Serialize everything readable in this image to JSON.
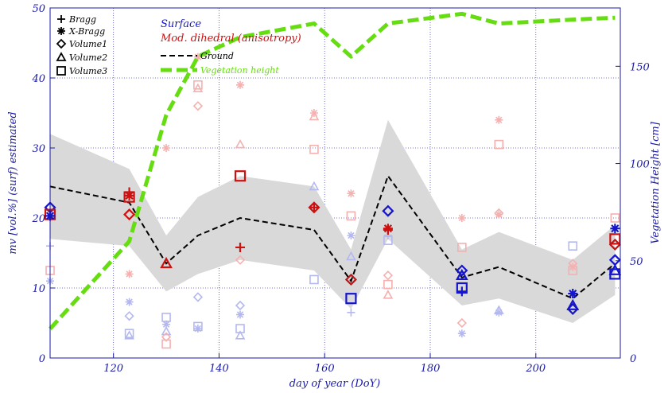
{
  "chart_data": {
    "type": "scatter",
    "xlabel": "day of year (DoY)",
    "ylabel_left": "mv [vol.%] (surf) estimated",
    "ylabel_right": "Vegetation Height [cm]",
    "xlim": [
      108,
      216
    ],
    "ylim_left": [
      0,
      50
    ],
    "ylim_right": [
      0,
      180
    ],
    "xticks": [
      120,
      140,
      160,
      180,
      200
    ],
    "yticks_left": [
      0,
      10,
      20,
      30,
      40,
      50
    ],
    "yticks_right": [
      0,
      50,
      100,
      150
    ],
    "grid": true,
    "colors": {
      "surface": "#1515cc",
      "dihedral": "#cc1111",
      "pale_surface": "#b4b8f0",
      "pale_dihedral": "#f5b0b0",
      "envelope": "#d9d9d9",
      "ground": "#000000",
      "vegetation": "#66dd11",
      "axis": "#1a1aa8"
    },
    "legend": {
      "symbols": [
        {
          "marker": "plus",
          "label": "Bragg"
        },
        {
          "marker": "star",
          "label": "X-Bragg"
        },
        {
          "marker": "diamond",
          "label": "Volume1"
        },
        {
          "marker": "triangle",
          "label": "Volume2"
        },
        {
          "marker": "square",
          "label": "Volume3"
        }
      ],
      "surface_label": "Surface",
      "dihedral_label": "Mod. dihedral (anisotropy)",
      "ground_label": "Ground",
      "vegetation_label": "Vegetation height"
    },
    "ground_series": {
      "x": [
        108,
        123,
        130,
        136,
        144,
        158,
        165,
        172,
        186,
        193,
        207,
        215
      ],
      "y": [
        24.5,
        22.2,
        13.5,
        17.5,
        20,
        18.3,
        11,
        26,
        11.5,
        13,
        8.5,
        13.5
      ]
    },
    "envelope": {
      "x": [
        108,
        123,
        130,
        136,
        144,
        158,
        165,
        172,
        186,
        193,
        207,
        215
      ],
      "upper": [
        32,
        27,
        17.5,
        23,
        26,
        24.5,
        15.5,
        34,
        15.5,
        18,
        14,
        19
      ],
      "lower": [
        17,
        16,
        9.5,
        12,
        14,
        12.5,
        7,
        17,
        7.5,
        8.5,
        5,
        9
      ]
    },
    "vegetation_series": {
      "x": [
        108,
        123,
        130,
        136,
        144,
        158,
        165,
        172,
        186,
        193,
        207,
        215
      ],
      "y": [
        15,
        60,
        125,
        155,
        165,
        172,
        155,
        172,
        177,
        172,
        174,
        175
      ]
    },
    "points": [
      {
        "x": 108,
        "y": 21.5,
        "marker": "diamond",
        "color": "surface",
        "size": "large"
      },
      {
        "x": 108,
        "y": 20.5,
        "marker": "square",
        "color": "dihedral",
        "size": "large"
      },
      {
        "x": 108,
        "y": 20.3,
        "marker": "star",
        "color": "surface",
        "size": "large"
      },
      {
        "x": 108,
        "y": 16,
        "marker": "plus",
        "color": "pale_surface",
        "size": "small"
      },
      {
        "x": 108,
        "y": 12.5,
        "marker": "square",
        "color": "pale_dihedral",
        "size": "small"
      },
      {
        "x": 108,
        "y": 11,
        "marker": "star",
        "color": "pale_surface",
        "size": "small"
      },
      {
        "x": 123,
        "y": 23.7,
        "marker": "plus",
        "color": "dihedral",
        "size": "large"
      },
      {
        "x": 123,
        "y": 23.2,
        "marker": "star",
        "color": "dihedral",
        "size": "large"
      },
      {
        "x": 123,
        "y": 23,
        "marker": "square",
        "color": "dihedral",
        "size": "large"
      },
      {
        "x": 123,
        "y": 20.5,
        "marker": "diamond",
        "color": "dihedral",
        "size": "large"
      },
      {
        "x": 123,
        "y": 12,
        "marker": "star",
        "color": "pale_dihedral",
        "size": "small"
      },
      {
        "x": 123,
        "y": 8,
        "marker": "star",
        "color": "pale_surface",
        "size": "small"
      },
      {
        "x": 123,
        "y": 6,
        "marker": "diamond",
        "color": "pale_surface",
        "size": "small"
      },
      {
        "x": 123,
        "y": 3.5,
        "marker": "square",
        "color": "pale_surface",
        "size": "small"
      },
      {
        "x": 123,
        "y": 3.2,
        "marker": "triangle",
        "color": "pale_surface",
        "size": "small"
      },
      {
        "x": 130,
        "y": 13.5,
        "marker": "triangle",
        "color": "dihedral",
        "size": "large"
      },
      {
        "x": 130,
        "y": 30,
        "marker": "star",
        "color": "pale_dihedral",
        "size": "small"
      },
      {
        "x": 130,
        "y": 5.8,
        "marker": "square",
        "color": "pale_surface",
        "size": "small"
      },
      {
        "x": 130,
        "y": 4.8,
        "marker": "star",
        "color": "pale_surface",
        "size": "small"
      },
      {
        "x": 130,
        "y": 3.8,
        "marker": "triangle",
        "color": "pale_surface",
        "size": "small"
      },
      {
        "x": 130,
        "y": 3,
        "marker": "diamond",
        "color": "pale_dihedral",
        "size": "small"
      },
      {
        "x": 130,
        "y": 2,
        "marker": "square",
        "color": "pale_dihedral",
        "size": "small"
      },
      {
        "x": 136,
        "y": 43,
        "marker": "star",
        "color": "pale_dihedral",
        "size": "small"
      },
      {
        "x": 136,
        "y": 39,
        "marker": "square",
        "color": "pale_dihedral",
        "size": "small"
      },
      {
        "x": 136,
        "y": 38.5,
        "marker": "triangle",
        "color": "pale_dihedral",
        "size": "small"
      },
      {
        "x": 136,
        "y": 36,
        "marker": "diamond",
        "color": "pale_dihedral",
        "size": "small"
      },
      {
        "x": 136,
        "y": 8.7,
        "marker": "diamond",
        "color": "pale_surface",
        "size": "small"
      },
      {
        "x": 136,
        "y": 4.5,
        "marker": "square",
        "color": "pale_surface",
        "size": "small"
      },
      {
        "x": 136,
        "y": 4.2,
        "marker": "star",
        "color": "pale_surface",
        "size": "small"
      },
      {
        "x": 144,
        "y": 26,
        "marker": "square",
        "color": "dihedral",
        "size": "large"
      },
      {
        "x": 144,
        "y": 15.8,
        "marker": "plus",
        "color": "dihedral",
        "size": "large"
      },
      {
        "x": 144,
        "y": 39,
        "marker": "star",
        "color": "pale_dihedral",
        "size": "small"
      },
      {
        "x": 144,
        "y": 30.5,
        "marker": "triangle",
        "color": "pale_dihedral",
        "size": "small"
      },
      {
        "x": 144,
        "y": 14,
        "marker": "diamond",
        "color": "pale_dihedral",
        "size": "small"
      },
      {
        "x": 144,
        "y": 7.5,
        "marker": "diamond",
        "color": "pale_surface",
        "size": "small"
      },
      {
        "x": 144,
        "y": 6.2,
        "marker": "star",
        "color": "pale_surface",
        "size": "small"
      },
      {
        "x": 144,
        "y": 4.2,
        "marker": "square",
        "color": "pale_surface",
        "size": "small"
      },
      {
        "x": 144,
        "y": 3.2,
        "marker": "triangle",
        "color": "pale_surface",
        "size": "small"
      },
      {
        "x": 158,
        "y": 21.5,
        "marker": "diamond",
        "color": "dihedral",
        "size": "large"
      },
      {
        "x": 158,
        "y": 21.5,
        "marker": "plus",
        "color": "dihedral",
        "size": "large"
      },
      {
        "x": 158,
        "y": 35,
        "marker": "star",
        "color": "pale_dihedral",
        "size": "small"
      },
      {
        "x": 158,
        "y": 34.5,
        "marker": "triangle",
        "color": "pale_dihedral",
        "size": "small"
      },
      {
        "x": 158,
        "y": 29.8,
        "marker": "square",
        "color": "pale_dihedral",
        "size": "small"
      },
      {
        "x": 158,
        "y": 24.5,
        "marker": "triangle",
        "color": "pale_surface",
        "size": "small"
      },
      {
        "x": 158,
        "y": 11.2,
        "marker": "square",
        "color": "pale_surface",
        "size": "small"
      },
      {
        "x": 165,
        "y": 11.2,
        "marker": "diamond",
        "color": "dihedral",
        "size": "large"
      },
      {
        "x": 165,
        "y": 8.5,
        "marker": "square",
        "color": "surface",
        "size": "large"
      },
      {
        "x": 165,
        "y": 23.5,
        "marker": "star",
        "color": "pale_dihedral",
        "size": "small"
      },
      {
        "x": 165,
        "y": 20.3,
        "marker": "square",
        "color": "pale_dihedral",
        "size": "small"
      },
      {
        "x": 165,
        "y": 17.5,
        "marker": "star",
        "color": "pale_surface",
        "size": "small"
      },
      {
        "x": 165,
        "y": 14.5,
        "marker": "triangle",
        "color": "pale_surface",
        "size": "small"
      },
      {
        "x": 165,
        "y": 6.5,
        "marker": "plus",
        "color": "pale_surface",
        "size": "small"
      },
      {
        "x": 172,
        "y": 21,
        "marker": "diamond",
        "color": "surface",
        "size": "large"
      },
      {
        "x": 172,
        "y": 18.5,
        "marker": "star",
        "color": "dihedral",
        "size": "large"
      },
      {
        "x": 172,
        "y": 18.3,
        "marker": "plus",
        "color": "dihedral",
        "size": "large"
      },
      {
        "x": 172,
        "y": 17.5,
        "marker": "plus",
        "color": "pale_surface",
        "size": "small"
      },
      {
        "x": 172,
        "y": 16.8,
        "marker": "square",
        "color": "pale_surface",
        "size": "small"
      },
      {
        "x": 172,
        "y": 11.8,
        "marker": "diamond",
        "color": "pale_dihedral",
        "size": "small"
      },
      {
        "x": 172,
        "y": 10.5,
        "marker": "square",
        "color": "pale_dihedral",
        "size": "small"
      },
      {
        "x": 172,
        "y": 9,
        "marker": "triangle",
        "color": "pale_dihedral",
        "size": "small"
      },
      {
        "x": 186,
        "y": 12.5,
        "marker": "diamond",
        "color": "surface",
        "size": "large"
      },
      {
        "x": 186,
        "y": 11.8,
        "marker": "triangle",
        "color": "surface",
        "size": "large"
      },
      {
        "x": 186,
        "y": 10,
        "marker": "square",
        "color": "surface",
        "size": "large"
      },
      {
        "x": 186,
        "y": 9.5,
        "marker": "plus",
        "color": "surface",
        "size": "large"
      },
      {
        "x": 186,
        "y": 20,
        "marker": "star",
        "color": "pale_dihedral",
        "size": "small"
      },
      {
        "x": 186,
        "y": 15.8,
        "marker": "square",
        "color": "pale_dihedral",
        "size": "small"
      },
      {
        "x": 186,
        "y": 5,
        "marker": "diamond",
        "color": "pale_dihedral",
        "size": "small"
      },
      {
        "x": 186,
        "y": 3.5,
        "marker": "star",
        "color": "pale_surface",
        "size": "small"
      },
      {
        "x": 193,
        "y": 34,
        "marker": "star",
        "color": "pale_dihedral",
        "size": "small"
      },
      {
        "x": 193,
        "y": 30.5,
        "marker": "square",
        "color": "pale_dihedral",
        "size": "small"
      },
      {
        "x": 193,
        "y": 20.7,
        "marker": "diamond",
        "color": "pale_dihedral",
        "size": "small"
      },
      {
        "x": 193,
        "y": 20.5,
        "marker": "star",
        "color": "pale_dihedral",
        "size": "small"
      },
      {
        "x": 193,
        "y": 6.8,
        "marker": "triangle",
        "color": "pale_surface",
        "size": "small"
      },
      {
        "x": 193,
        "y": 6.5,
        "marker": "star",
        "color": "pale_surface",
        "size": "small"
      },
      {
        "x": 207,
        "y": 9.2,
        "marker": "star",
        "color": "surface",
        "size": "large"
      },
      {
        "x": 207,
        "y": 7.5,
        "marker": "triangle",
        "color": "surface",
        "size": "large"
      },
      {
        "x": 207,
        "y": 7,
        "marker": "diamond",
        "color": "surface",
        "size": "large"
      },
      {
        "x": 207,
        "y": 16,
        "marker": "square",
        "color": "pale_surface",
        "size": "small"
      },
      {
        "x": 207,
        "y": 13.5,
        "marker": "diamond",
        "color": "pale_dihedral",
        "size": "small"
      },
      {
        "x": 207,
        "y": 13,
        "marker": "star",
        "color": "pale_dihedral",
        "size": "small"
      },
      {
        "x": 207,
        "y": 12.5,
        "marker": "square",
        "color": "pale_dihedral",
        "size": "small"
      },
      {
        "x": 215,
        "y": 18.5,
        "marker": "star",
        "color": "surface",
        "size": "large"
      },
      {
        "x": 215,
        "y": 17,
        "marker": "square",
        "color": "dihedral",
        "size": "large"
      },
      {
        "x": 215,
        "y": 16.2,
        "marker": "diamond",
        "color": "dihedral",
        "size": "large"
      },
      {
        "x": 215,
        "y": 14,
        "marker": "diamond",
        "color": "surface",
        "size": "large"
      },
      {
        "x": 215,
        "y": 12.5,
        "marker": "triangle",
        "color": "surface",
        "size": "large"
      },
      {
        "x": 215,
        "y": 12,
        "marker": "square",
        "color": "surface",
        "size": "large"
      },
      {
        "x": 215,
        "y": 20,
        "marker": "square",
        "color": "pale_dihedral",
        "size": "small"
      }
    ]
  }
}
